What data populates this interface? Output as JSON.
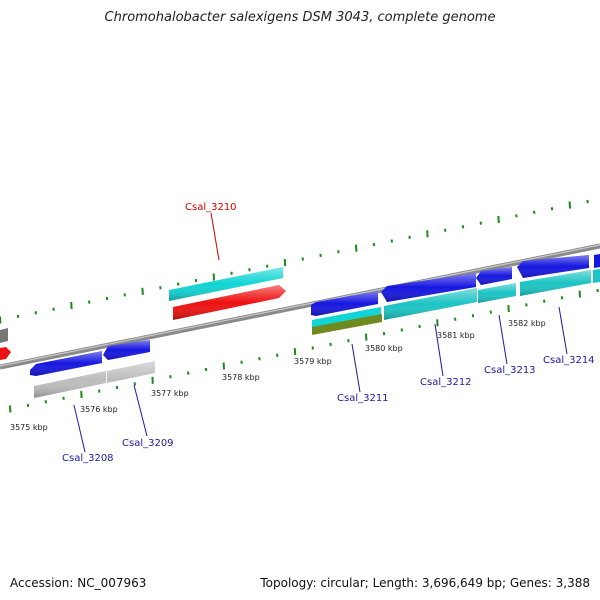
{
  "title": "Chromohalobacter salexigens DSM 3043, complete genome",
  "footer": {
    "accession": "Accession: NC_007963",
    "summary": "Topology: circular; Length: 3,696,649 bp; Genes: 3,388"
  },
  "scale_labels": [
    "3575 kbp",
    "3576 kbp",
    "3577 kbp",
    "3578 kbp",
    "3579 kbp",
    "3580 kbp",
    "3581 kbp",
    "3582 kbp"
  ],
  "genes": [
    {
      "name": "Csal_3208",
      "color": "#1a1aa6"
    },
    {
      "name": "Csal_3209",
      "color": "#1a1aa6"
    },
    {
      "name": "Csal_3210",
      "color": "#cc0000"
    },
    {
      "name": "Csal_3211",
      "color": "#1a1aa6"
    },
    {
      "name": "Csal_3212",
      "color": "#1a1aa6"
    },
    {
      "name": "Csal_3213",
      "color": "#1a1aa6"
    },
    {
      "name": "Csal_3214",
      "color": "#1a1aa6"
    }
  ],
  "colors": {
    "cds_forward": "#1616e0",
    "cds_reverse": "#ee1111",
    "gene_cyan": "#11d4d4",
    "gene_teal": "#1cc4c4",
    "gene_gray": "#bdbdbd",
    "gene_olive": "#6f8a1e",
    "backbone": "#8a8a8a",
    "tick": "#1a8a1a"
  }
}
